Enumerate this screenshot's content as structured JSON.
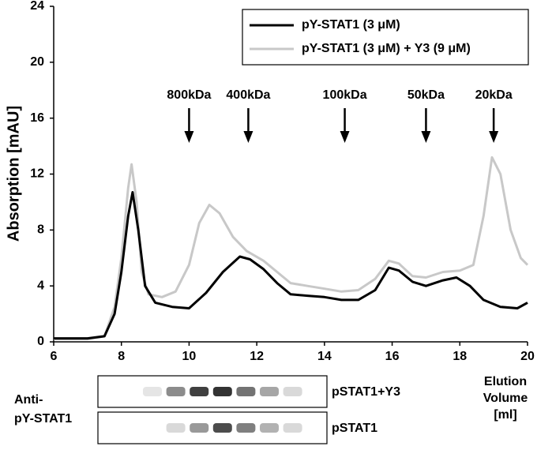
{
  "chart_data": {
    "type": "line",
    "y_label": "Absorption [mAU]",
    "x_label": [
      "Elution",
      "Volume",
      "[ml]"
    ],
    "xlim": [
      6,
      20
    ],
    "xticks": [
      6,
      8,
      10,
      12,
      14,
      16,
      18,
      20
    ],
    "ylim": [
      0,
      24
    ],
    "yticks": [
      0,
      4,
      8,
      12,
      16,
      20,
      24
    ],
    "grid": false,
    "legend": "top-right",
    "series": [
      {
        "name": "pY-STAT1 (3 μM)",
        "color": "#000000",
        "x": [
          6,
          7,
          7.5,
          7.8,
          8.0,
          8.2,
          8.33,
          8.5,
          8.7,
          9.0,
          9.5,
          10.0,
          10.5,
          11.0,
          11.5,
          11.8,
          12.2,
          12.6,
          13.0,
          13.5,
          14.0,
          14.5,
          15.0,
          15.5,
          15.9,
          16.2,
          16.6,
          17.0,
          17.5,
          17.9,
          18.3,
          18.7,
          19.2,
          19.7,
          20
        ],
        "values": [
          0.25,
          0.25,
          0.4,
          2,
          5,
          9,
          10.7,
          8,
          4,
          2.8,
          2.5,
          2.4,
          3.5,
          5,
          6.1,
          5.9,
          5.2,
          4.2,
          3.4,
          3.3,
          3.2,
          3.0,
          3.0,
          3.7,
          5.3,
          5.1,
          4.3,
          4.0,
          4.4,
          4.6,
          4.0,
          3.0,
          2.5,
          2.4,
          2.8
        ]
      },
      {
        "name": "pY-STAT1 (3 μM) + Y3 (9 μM)",
        "color": "#c8c8c8",
        "x": [
          6,
          7,
          7.5,
          7.8,
          8.0,
          8.2,
          8.3,
          8.45,
          8.6,
          8.8,
          9.2,
          9.6,
          10.0,
          10.3,
          10.6,
          10.9,
          11.3,
          11.7,
          12.2,
          12.6,
          13.0,
          13.5,
          14.0,
          14.5,
          15.0,
          15.5,
          15.9,
          16.2,
          16.6,
          17.0,
          17.5,
          18.0,
          18.4,
          18.7,
          18.95,
          19.2,
          19.5,
          19.8,
          20
        ],
        "values": [
          0.2,
          0.2,
          0.4,
          2.5,
          6,
          11,
          12.7,
          10,
          5,
          3.4,
          3.2,
          3.6,
          5.5,
          8.5,
          9.8,
          9.2,
          7.5,
          6.5,
          5.8,
          5.0,
          4.2,
          4.0,
          3.8,
          3.6,
          3.7,
          4.5,
          5.8,
          5.6,
          4.7,
          4.6,
          5.0,
          5.1,
          5.5,
          9,
          13.2,
          12,
          8,
          6,
          5.5
        ]
      }
    ],
    "annotations": [
      {
        "text": "800kDa",
        "x": 10.0
      },
      {
        "text": "400kDa",
        "x": 11.75
      },
      {
        "text": "100kDa",
        "x": 14.6
      },
      {
        "text": "50kDa",
        "x": 17.0
      },
      {
        "text": "20kDa",
        "x": 19.0
      }
    ],
    "blot": {
      "antibody": [
        "Anti-",
        "pY-STAT1"
      ],
      "rows": [
        {
          "label": "pSTAT1+Y3",
          "intensities": [
            0.1,
            0.45,
            0.75,
            0.8,
            0.55,
            0.35,
            0.15
          ]
        },
        {
          "label": "pSTAT1",
          "intensities": [
            0,
            0.15,
            0.4,
            0.7,
            0.5,
            0.3,
            0.15
          ]
        }
      ]
    }
  }
}
